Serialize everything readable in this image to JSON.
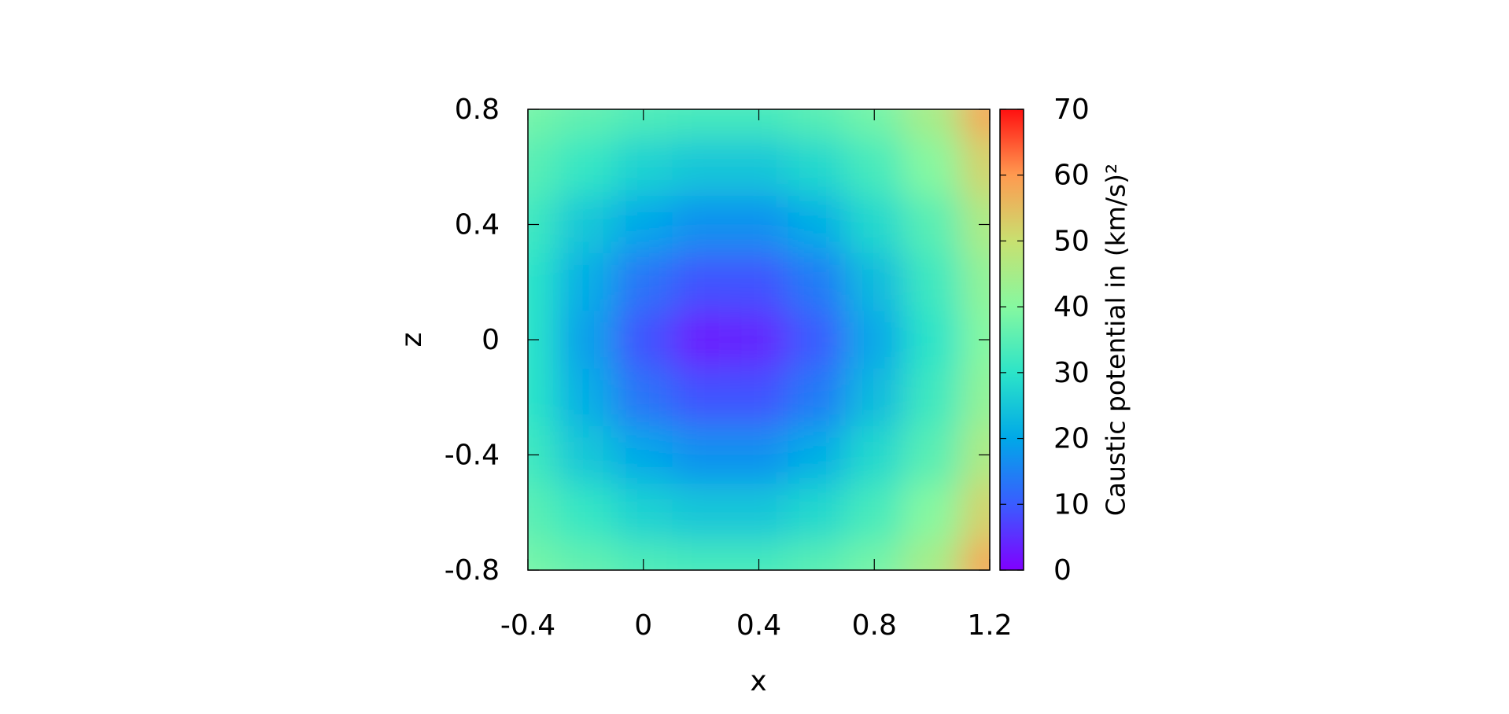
{
  "chart_data": {
    "type": "heatmap",
    "xlabel": "x",
    "ylabel": "z",
    "colorbar_label": "Caustic potential in (km/s)²",
    "x": [
      -0.4,
      -0.2,
      0,
      0.2,
      0.4,
      0.6,
      0.8,
      1.0,
      1.2
    ],
    "y": [
      0.8,
      0.6,
      0.4,
      0.2,
      0,
      -0.2,
      -0.4,
      -0.6,
      -0.8
    ],
    "values": [
      [
        38,
        36,
        34,
        33,
        33,
        35,
        38,
        45,
        58
      ],
      [
        35,
        31,
        27,
        25,
        25,
        28,
        33,
        40,
        52
      ],
      [
        32,
        25,
        20,
        17,
        17,
        21,
        28,
        35,
        46
      ],
      [
        30,
        21,
        13,
        9,
        9,
        14,
        23,
        32,
        42
      ],
      [
        30,
        19,
        9,
        3,
        4,
        10,
        20,
        30,
        40
      ],
      [
        30,
        21,
        13,
        9,
        9,
        14,
        23,
        32,
        42
      ],
      [
        32,
        25,
        20,
        17,
        17,
        21,
        28,
        35,
        46
      ],
      [
        35,
        31,
        27,
        25,
        25,
        28,
        33,
        40,
        52
      ],
      [
        38,
        36,
        34,
        33,
        33,
        35,
        38,
        45,
        58
      ]
    ],
    "xlim": [
      -0.4,
      1.2
    ],
    "xticks": [
      -0.4,
      0,
      0.4,
      0.8,
      1.2
    ],
    "ylim": [
      -0.8,
      0.8
    ],
    "yticks": [
      -0.8,
      -0.4,
      0,
      0.4,
      0.8
    ],
    "clim": [
      0,
      70
    ],
    "cticks": [
      0,
      10,
      20,
      30,
      40,
      50,
      60,
      70
    ],
    "colormap": [
      "#8000ff",
      "#3a5cff",
      "#00a8e8",
      "#2ce4c8",
      "#86f8a0",
      "#c8e070",
      "#ff9a50",
      "#ff1010"
    ]
  }
}
